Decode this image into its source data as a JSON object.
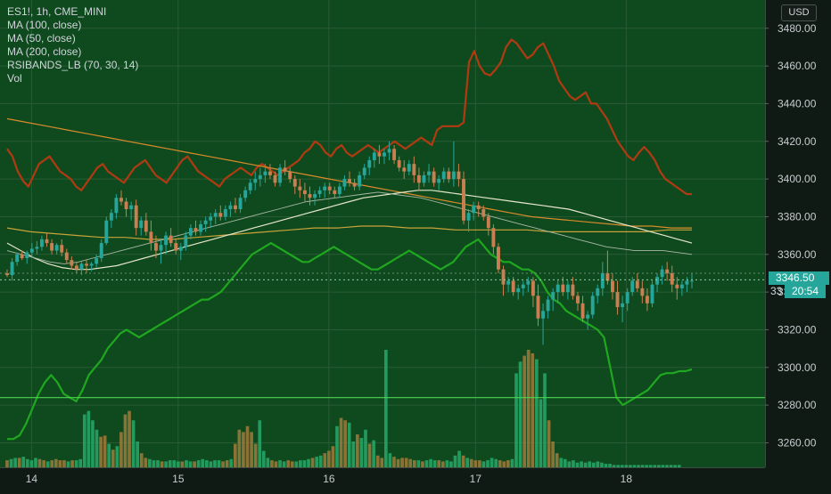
{
  "header": {
    "symbol_line": "ES1!, 1h, CME_MINI",
    "indicators": [
      "MA (100, close)",
      "MA (50, close)",
      "MA (200, close)",
      "RSIBANDS_LB (70, 30, 14)",
      "Vol"
    ],
    "currency": "USD"
  },
  "tags": {
    "last_price": "3346.50",
    "countdown": "20:54",
    "partial": "33"
  },
  "colors": {
    "plot_bg": "#0f4a1e",
    "outer_bg": "#101a14",
    "up": "#26a69a",
    "down": "#c97f52",
    "vol_up": "#27a86a",
    "vol_down": "#a07a3c",
    "rsi_upper": "#b23a12",
    "rsi_lower": "#1fa81f",
    "ma100": "#e6e6c8",
    "ma50": "#aab8a8",
    "ma200": "#d98a2a",
    "ma200_b": "#c9a23a",
    "hline": "#4fd14f",
    "axis_text": "#c8ccd0"
  },
  "chart_data": {
    "type": "candlestick",
    "title": "ES1!, 1h, CME_MINI",
    "y_axis": {
      "ticks": [
        3260,
        3280,
        3300,
        3320,
        3340,
        3360,
        3380,
        3400,
        3420,
        3440,
        3460,
        3480
      ],
      "range": [
        3247,
        3495
      ]
    },
    "x_axis": {
      "ticks": [
        {
          "label": "14",
          "bar": 6
        },
        {
          "label": "15",
          "bar": 42
        },
        {
          "label": "16",
          "bar": 79
        },
        {
          "label": "17",
          "bar": 115
        },
        {
          "label": "18",
          "bar": 152
        }
      ],
      "bar_count": 170
    },
    "last_price": 3346.5,
    "horizontal_line": 3284,
    "candles": [
      [
        3350,
        3352,
        3348,
        3349
      ],
      [
        3349,
        3358,
        3346,
        3356
      ],
      [
        3356,
        3361,
        3354,
        3360
      ],
      [
        3360,
        3362,
        3357,
        3358
      ],
      [
        3358,
        3362,
        3355,
        3361
      ],
      [
        3361,
        3366,
        3358,
        3363
      ],
      [
        3363,
        3367,
        3360,
        3364
      ],
      [
        3364,
        3370,
        3362,
        3368
      ],
      [
        3368,
        3371,
        3364,
        3366
      ],
      [
        3366,
        3368,
        3360,
        3362
      ],
      [
        3362,
        3366,
        3360,
        3365
      ],
      [
        3365,
        3368,
        3359,
        3361
      ],
      [
        3361,
        3363,
        3355,
        3357
      ],
      [
        3357,
        3359,
        3352,
        3354
      ],
      [
        3354,
        3356,
        3350,
        3352
      ],
      [
        3352,
        3356,
        3349,
        3355
      ],
      [
        3355,
        3357,
        3350,
        3354
      ],
      [
        3354,
        3356,
        3351,
        3355
      ],
      [
        3355,
        3360,
        3353,
        3358
      ],
      [
        3358,
        3368,
        3356,
        3366
      ],
      [
        3366,
        3380,
        3365,
        3378
      ],
      [
        3378,
        3384,
        3374,
        3382
      ],
      [
        3382,
        3392,
        3379,
        3390
      ],
      [
        3390,
        3394,
        3386,
        3388
      ],
      [
        3388,
        3390,
        3380,
        3384
      ],
      [
        3384,
        3388,
        3378,
        3386
      ],
      [
        3386,
        3389,
        3370,
        3374
      ],
      [
        3374,
        3380,
        3370,
        3378
      ],
      [
        3378,
        3382,
        3370,
        3372
      ],
      [
        3372,
        3378,
        3362,
        3366
      ],
      [
        3366,
        3370,
        3358,
        3362
      ],
      [
        3362,
        3368,
        3355,
        3365
      ],
      [
        3365,
        3372,
        3360,
        3370
      ],
      [
        3370,
        3374,
        3364,
        3366
      ],
      [
        3366,
        3368,
        3360,
        3362
      ],
      [
        3362,
        3366,
        3357,
        3364
      ],
      [
        3364,
        3372,
        3362,
        3370
      ],
      [
        3370,
        3376,
        3368,
        3374
      ],
      [
        3374,
        3378,
        3370,
        3372
      ],
      [
        3372,
        3378,
        3370,
        3376
      ],
      [
        3376,
        3380,
        3372,
        3378
      ],
      [
        3378,
        3382,
        3374,
        3380
      ],
      [
        3380,
        3384,
        3376,
        3382
      ],
      [
        3382,
        3386,
        3378,
        3380
      ],
      [
        3380,
        3386,
        3378,
        3384
      ],
      [
        3384,
        3388,
        3380,
        3386
      ],
      [
        3386,
        3390,
        3382,
        3384
      ],
      [
        3384,
        3392,
        3382,
        3390
      ],
      [
        3390,
        3396,
        3388,
        3394
      ],
      [
        3394,
        3400,
        3392,
        3398
      ],
      [
        3398,
        3404,
        3394,
        3400
      ],
      [
        3400,
        3406,
        3396,
        3402
      ],
      [
        3402,
        3408,
        3398,
        3404
      ],
      [
        3404,
        3408,
        3400,
        3402
      ],
      [
        3402,
        3404,
        3396,
        3398
      ],
      [
        3398,
        3408,
        3396,
        3406
      ],
      [
        3406,
        3410,
        3402,
        3404
      ],
      [
        3404,
        3406,
        3398,
        3400
      ],
      [
        3400,
        3402,
        3392,
        3396
      ],
      [
        3396,
        3400,
        3390,
        3394
      ],
      [
        3394,
        3398,
        3388,
        3392
      ],
      [
        3392,
        3396,
        3386,
        3390
      ],
      [
        3390,
        3394,
        3386,
        3392
      ],
      [
        3392,
        3396,
        3390,
        3394
      ],
      [
        3394,
        3398,
        3390,
        3396
      ],
      [
        3396,
        3398,
        3392,
        3394
      ],
      [
        3394,
        3396,
        3390,
        3392
      ],
      [
        3392,
        3398,
        3390,
        3396
      ],
      [
        3396,
        3402,
        3394,
        3400
      ],
      [
        3400,
        3404,
        3396,
        3398
      ],
      [
        3398,
        3400,
        3394,
        3396
      ],
      [
        3396,
        3404,
        3394,
        3402
      ],
      [
        3402,
        3408,
        3400,
        3406
      ],
      [
        3406,
        3412,
        3402,
        3410
      ],
      [
        3410,
        3416,
        3406,
        3414
      ],
      [
        3414,
        3418,
        3408,
        3412
      ],
      [
        3412,
        3416,
        3408,
        3414
      ],
      [
        3414,
        3420,
        3410,
        3416
      ],
      [
        3416,
        3418,
        3408,
        3410
      ],
      [
        3410,
        3412,
        3404,
        3406
      ],
      [
        3406,
        3410,
        3400,
        3404
      ],
      [
        3404,
        3410,
        3402,
        3408
      ],
      [
        3408,
        3412,
        3398,
        3402
      ],
      [
        3402,
        3406,
        3394,
        3398
      ],
      [
        3398,
        3404,
        3396,
        3402
      ],
      [
        3402,
        3408,
        3398,
        3404
      ],
      [
        3404,
        3406,
        3396,
        3398
      ],
      [
        3398,
        3402,
        3394,
        3400
      ],
      [
        3400,
        3406,
        3398,
        3404
      ],
      [
        3404,
        3406,
        3398,
        3400
      ],
      [
        3400,
        3420,
        3396,
        3404
      ],
      [
        3404,
        3408,
        3396,
        3400
      ],
      [
        3400,
        3404,
        3376,
        3378
      ],
      [
        3378,
        3384,
        3372,
        3382
      ],
      [
        3382,
        3388,
        3378,
        3386
      ],
      [
        3386,
        3388,
        3380,
        3384
      ],
      [
        3384,
        3386,
        3378,
        3380
      ],
      [
        3380,
        3382,
        3370,
        3374
      ],
      [
        3374,
        3376,
        3360,
        3364
      ],
      [
        3364,
        3366,
        3350,
        3352
      ],
      [
        3352,
        3354,
        3338,
        3344
      ],
      [
        3344,
        3348,
        3340,
        3346
      ],
      [
        3346,
        3348,
        3338,
        3340
      ],
      [
        3340,
        3344,
        3336,
        3342
      ],
      [
        3342,
        3346,
        3338,
        3344
      ],
      [
        3344,
        3348,
        3340,
        3346
      ],
      [
        3346,
        3348,
        3332,
        3338
      ],
      [
        3338,
        3344,
        3322,
        3326
      ],
      [
        3326,
        3334,
        3312,
        3330
      ],
      [
        3330,
        3338,
        3326,
        3336
      ],
      [
        3336,
        3342,
        3330,
        3340
      ],
      [
        3340,
        3346,
        3334,
        3344
      ],
      [
        3344,
        3348,
        3338,
        3340
      ],
      [
        3340,
        3346,
        3336,
        3344
      ],
      [
        3344,
        3348,
        3336,
        3338
      ],
      [
        3338,
        3340,
        3330,
        3334
      ],
      [
        3334,
        3338,
        3324,
        3326
      ],
      [
        3326,
        3330,
        3320,
        3328
      ],
      [
        3328,
        3340,
        3326,
        3338
      ],
      [
        3338,
        3344,
        3334,
        3342
      ],
      [
        3342,
        3356,
        3338,
        3350
      ],
      [
        3350,
        3362,
        3344,
        3346
      ],
      [
        3346,
        3350,
        3336,
        3340
      ],
      [
        3340,
        3346,
        3328,
        3332
      ],
      [
        3332,
        3338,
        3324,
        3334
      ],
      [
        3334,
        3342,
        3330,
        3340
      ],
      [
        3340,
        3348,
        3338,
        3346
      ],
      [
        3346,
        3350,
        3340,
        3342
      ],
      [
        3342,
        3346,
        3334,
        3338
      ],
      [
        3338,
        3342,
        3330,
        3334
      ],
      [
        3334,
        3346,
        3332,
        3344
      ],
      [
        3344,
        3350,
        3340,
        3348
      ],
      [
        3348,
        3354,
        3344,
        3352
      ],
      [
        3352,
        3356,
        3346,
        3350
      ],
      [
        3350,
        3354,
        3340,
        3344
      ],
      [
        3344,
        3348,
        3336,
        3342
      ],
      [
        3342,
        3346,
        3338,
        3344
      ],
      [
        3344,
        3348,
        3340,
        3346
      ],
      [
        3346,
        3350,
        3342,
        3346
      ]
    ],
    "volume": [
      6,
      7,
      8,
      8,
      9,
      7,
      6,
      8,
      7,
      6,
      5,
      6,
      7,
      6,
      6,
      5,
      6,
      6,
      7,
      45,
      48,
      40,
      32,
      26,
      27,
      20,
      15,
      18,
      30,
      45,
      48,
      40,
      22,
      12,
      8,
      7,
      6,
      6,
      5,
      5,
      6,
      6,
      5,
      5,
      6,
      5,
      5,
      6,
      7,
      6,
      5,
      6,
      6,
      5,
      6,
      7,
      20,
      32,
      30,
      35,
      30,
      20,
      40,
      14,
      8,
      6,
      5,
      6,
      5,
      6,
      5,
      5,
      6,
      6,
      7,
      8,
      9,
      10,
      12,
      14,
      18,
      35,
      42,
      40,
      38,
      22,
      28,
      25,
      32,
      20,
      23,
      10,
      8,
      100,
      12,
      9,
      7,
      8,
      8,
      7,
      6,
      6,
      5,
      6,
      7,
      6,
      6,
      5,
      6,
      5,
      10,
      14,
      10,
      8,
      7,
      6,
      6,
      5,
      6,
      8,
      7,
      6,
      5,
      6,
      7,
      80,
      90,
      95,
      100,
      97,
      92,
      58,
      80,
      40,
      22,
      12,
      8,
      7,
      5,
      6,
      4,
      5,
      4,
      5,
      4,
      5,
      4,
      3,
      3,
      2,
      2,
      2,
      2,
      2,
      2,
      2,
      2,
      2,
      2,
      2,
      2,
      2,
      2,
      2,
      2,
      2
    ],
    "series": {
      "rsi_band_upper": [
        3416,
        3412,
        3404,
        3399,
        3396,
        3402,
        3408,
        3410,
        3412,
        3408,
        3404,
        3402,
        3400,
        3396,
        3394,
        3398,
        3402,
        3406,
        3408,
        3404,
        3402,
        3400,
        3398,
        3402,
        3406,
        3408,
        3410,
        3406,
        3402,
        3400,
        3398,
        3402,
        3406,
        3410,
        3412,
        3408,
        3404,
        3402,
        3400,
        3398,
        3396,
        3400,
        3402,
        3404,
        3406,
        3404,
        3402,
        3406,
        3408,
        3406,
        3404,
        3402,
        3404,
        3406,
        3408,
        3410,
        3414,
        3416,
        3420,
        3418,
        3414,
        3412,
        3416,
        3418,
        3414,
        3412,
        3414,
        3416,
        3418,
        3416,
        3414,
        3416,
        3418,
        3420,
        3418,
        3416,
        3418,
        3420,
        3422,
        3420,
        3418,
        3426,
        3428,
        3428,
        3428,
        3428,
        3430,
        3462,
        3468,
        3460,
        3456,
        3455,
        3458,
        3462,
        3470,
        3474,
        3472,
        3468,
        3464,
        3466,
        3470,
        3472,
        3466,
        3460,
        3452,
        3448,
        3444,
        3442,
        3444,
        3446,
        3440,
        3440,
        3436,
        3432,
        3426,
        3420,
        3416,
        3412,
        3410,
        3414,
        3417,
        3414,
        3410,
        3404,
        3400,
        3398,
        3396,
        3394,
        3392,
        3392
      ],
      "rsi_band_lower": [
        3262,
        3262,
        3264,
        3270,
        3278,
        3286,
        3292,
        3296,
        3292,
        3286,
        3284,
        3282,
        3288,
        3296,
        3300,
        3304,
        3310,
        3314,
        3318,
        3320,
        3318,
        3316,
        3318,
        3320,
        3322,
        3324,
        3326,
        3328,
        3330,
        3332,
        3334,
        3336,
        3336,
        3338,
        3340,
        3344,
        3348,
        3352,
        3356,
        3360,
        3362,
        3364,
        3366,
        3364,
        3362,
        3360,
        3358,
        3356,
        3356,
        3358,
        3360,
        3362,
        3364,
        3362,
        3360,
        3358,
        3356,
        3354,
        3352,
        3352,
        3354,
        3356,
        3358,
        3360,
        3362,
        3360,
        3358,
        3356,
        3354,
        3352,
        3354,
        3356,
        3360,
        3364,
        3366,
        3368,
        3364,
        3360,
        3358,
        3356,
        3356,
        3354,
        3352,
        3352,
        3350,
        3346,
        3340,
        3336,
        3334,
        3330,
        3328,
        3326,
        3324,
        3322,
        3320,
        3316,
        3300,
        3284,
        3280,
        3282,
        3284,
        3286,
        3288,
        3292,
        3296,
        3297,
        3297,
        3298,
        3298,
        3299
      ],
      "ma50": [
        3362,
        3360,
        3358,
        3356,
        3355,
        3356,
        3358,
        3360,
        3362,
        3364,
        3366,
        3368,
        3370,
        3372,
        3374,
        3376,
        3378,
        3380,
        3382,
        3384,
        3386,
        3388,
        3389,
        3390,
        3391,
        3392,
        3393,
        3392,
        3391,
        3390,
        3388,
        3386,
        3384,
        3382,
        3380,
        3378,
        3376,
        3374,
        3372,
        3370,
        3368,
        3366,
        3364,
        3363,
        3362,
        3362,
        3362,
        3361,
        3360
      ],
      "ma100": [
        3366,
        3362,
        3358,
        3355,
        3353,
        3352,
        3352,
        3353,
        3354,
        3356,
        3358,
        3360,
        3362,
        3364,
        3366,
        3368,
        3370,
        3372,
        3374,
        3376,
        3378,
        3380,
        3382,
        3384,
        3386,
        3388,
        3390,
        3391,
        3392,
        3393,
        3394,
        3394,
        3393,
        3392,
        3391,
        3390,
        3389,
        3388,
        3387,
        3386,
        3385,
        3384,
        3382,
        3380,
        3378,
        3376,
        3374,
        3372,
        3370,
        3368,
        3366
      ],
      "ma200": [
        3432,
        3430,
        3428,
        3426,
        3424,
        3422,
        3420,
        3418,
        3416,
        3414,
        3412,
        3410,
        3408,
        3406,
        3404,
        3402,
        3400,
        3398,
        3396,
        3394,
        3392,
        3390,
        3388,
        3386,
        3384,
        3382,
        3380,
        3379,
        3378,
        3377,
        3376,
        3375,
        3375,
        3374,
        3374
      ],
      "ma200_b": [
        3374,
        3372,
        3371,
        3370,
        3369,
        3369,
        3368,
        3368,
        3369,
        3370,
        3371,
        3372,
        3373,
        3374,
        3374,
        3375,
        3375,
        3374,
        3374,
        3373,
        3373,
        3373,
        3373,
        3372,
        3372,
        3372,
        3372,
        3372,
        3373,
        3373
      ]
    }
  }
}
